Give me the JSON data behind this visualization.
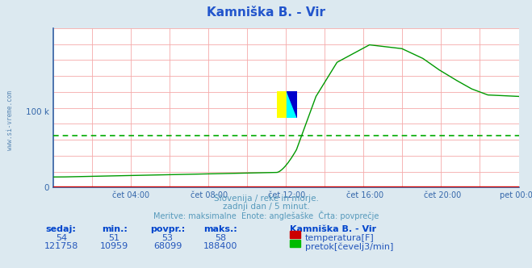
{
  "title": "Kamniška B. - Vir",
  "bg_color": "#dce9f0",
  "plot_bg_color": "#ffffff",
  "grid_color": "#f0aaaa",
  "avg_line_color": "#00aa00",
  "avg_line_value": 68099,
  "xlabel_ticks": [
    "čet 04:00",
    "čet 08:00",
    "čet 12:00",
    "čet 16:00",
    "čet 20:00",
    "pet 00:00"
  ],
  "subtitle1": "Slovenija / reke in morje.",
  "subtitle2": "zadnji dan / 5 minut.",
  "subtitle3": "Meritve: maksimalne  Enote: anglešaške  Črta: povprečje",
  "subtitle_color": "#5599bb",
  "table_headers": [
    "sedaj:",
    "min.:",
    "povpr.:",
    "maks.:"
  ],
  "table_row1": [
    "54",
    "51",
    "53",
    "58"
  ],
  "table_row2": [
    "121758",
    "10959",
    "68099",
    "188400"
  ],
  "legend_title": "Kamniška B. - Vir",
  "legend_items": [
    "temperatura[F]",
    "pretok[čevelj3/min]"
  ],
  "legend_colors": [
    "#cc0000",
    "#00bb00"
  ],
  "temp_color": "#cc0000",
  "flow_color": "#009900",
  "title_color": "#2255cc",
  "axis_color": "#3366aa",
  "tick_color": "#3366aa",
  "sidebar_text": "www.si-vreme.com",
  "sidebar_color": "#4477aa",
  "arrow_color": "#cc0000",
  "ymax": 210000,
  "n_points": 288
}
